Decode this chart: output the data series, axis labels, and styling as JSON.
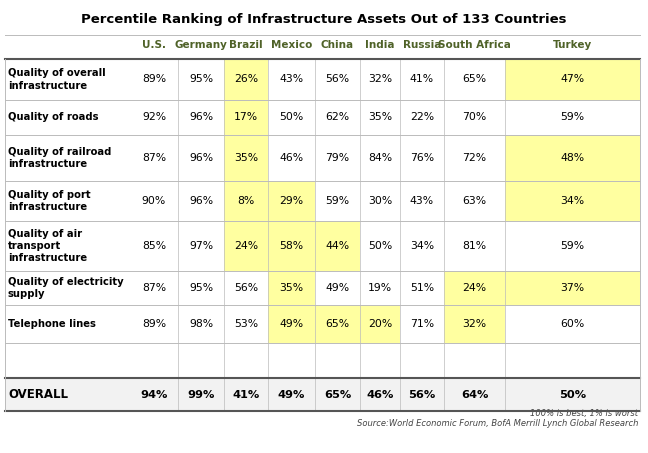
{
  "title": "Percentile Ranking of Infrastructure Assets Out of 133 Countries",
  "footnote1": "100% is best, 1% is worst",
  "footnote2": "Source:World Economic Forum, BofA Merrill Lynch Global Research",
  "columns": [
    "U.S.",
    "Germany",
    "Brazil",
    "Mexico",
    "China",
    "India",
    "Russia",
    "South Africa",
    "Turkey"
  ],
  "rows": [
    {
      "label": "Quality of overall\ninfrastructure",
      "values": [
        "89%",
        "95%",
        "26%",
        "43%",
        "56%",
        "32%",
        "41%",
        "65%",
        "47%"
      ],
      "highlights": [
        false,
        false,
        true,
        false,
        false,
        false,
        false,
        false,
        true
      ]
    },
    {
      "label": "Quality of roads",
      "values": [
        "92%",
        "96%",
        "17%",
        "50%",
        "62%",
        "35%",
        "22%",
        "70%",
        "59%"
      ],
      "highlights": [
        false,
        false,
        true,
        false,
        false,
        false,
        false,
        false,
        false
      ]
    },
    {
      "label": "Quality of railroad\ninfrastructure",
      "values": [
        "87%",
        "96%",
        "35%",
        "46%",
        "79%",
        "84%",
        "76%",
        "72%",
        "48%"
      ],
      "highlights": [
        false,
        false,
        true,
        false,
        false,
        false,
        false,
        false,
        true
      ]
    },
    {
      "label": "Quality of port\ninfrastructure",
      "values": [
        "90%",
        "96%",
        "8%",
        "29%",
        "59%",
        "30%",
        "43%",
        "63%",
        "34%"
      ],
      "highlights": [
        false,
        false,
        true,
        true,
        false,
        false,
        false,
        false,
        true
      ]
    },
    {
      "label": "Quality of air\ntransport\ninfrastructure",
      "values": [
        "85%",
        "97%",
        "24%",
        "58%",
        "44%",
        "50%",
        "34%",
        "81%",
        "59%"
      ],
      "highlights": [
        false,
        false,
        true,
        true,
        true,
        false,
        false,
        false,
        false
      ]
    },
    {
      "label": "Quality of electricity\nsupply",
      "values": [
        "87%",
        "95%",
        "56%",
        "35%",
        "49%",
        "19%",
        "51%",
        "24%",
        "37%"
      ],
      "highlights": [
        false,
        false,
        false,
        true,
        false,
        false,
        false,
        true,
        true
      ]
    },
    {
      "label": "Telephone lines",
      "values": [
        "89%",
        "98%",
        "53%",
        "49%",
        "65%",
        "20%",
        "71%",
        "32%",
        "60%"
      ],
      "highlights": [
        false,
        false,
        false,
        true,
        true,
        true,
        false,
        true,
        false
      ]
    }
  ],
  "overall": {
    "label": "OVERALL",
    "values": [
      "94%",
      "99%",
      "41%",
      "49%",
      "65%",
      "46%",
      "56%",
      "64%",
      "50%"
    ],
    "highlights": [
      false,
      false,
      false,
      false,
      false,
      false,
      false,
      false,
      false
    ]
  },
  "highlight_color": "#FFFFA0",
  "white_color": "#FFFFFF",
  "header_text_color": "#4F6228",
  "title_color": "#000000",
  "thick_border_color": "#555555",
  "light_line_color": "#BBBBBB"
}
